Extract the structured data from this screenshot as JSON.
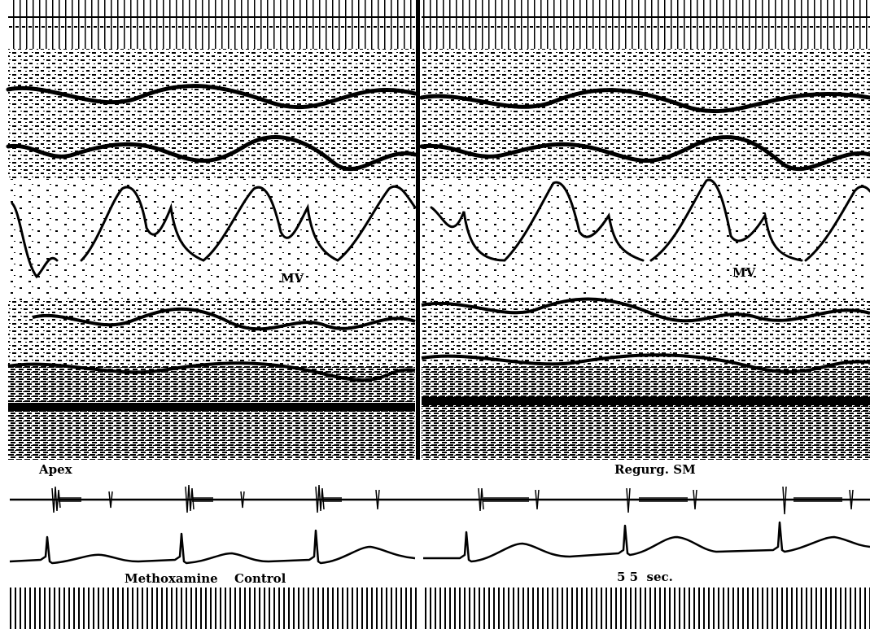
{
  "figure": {
    "panels": [
      {
        "mv_label": "MV"
      },
      {
        "mv_label": "MV"
      }
    ],
    "trace_labels": {
      "left_phono": "Apex",
      "right_phono": "Regurg. SM"
    },
    "captions": {
      "left_a": "Methoxamine",
      "left_b": "Control",
      "right": "5 5  sec."
    }
  },
  "colors": {
    "ink": "#000000",
    "paper": "#ffffff"
  }
}
